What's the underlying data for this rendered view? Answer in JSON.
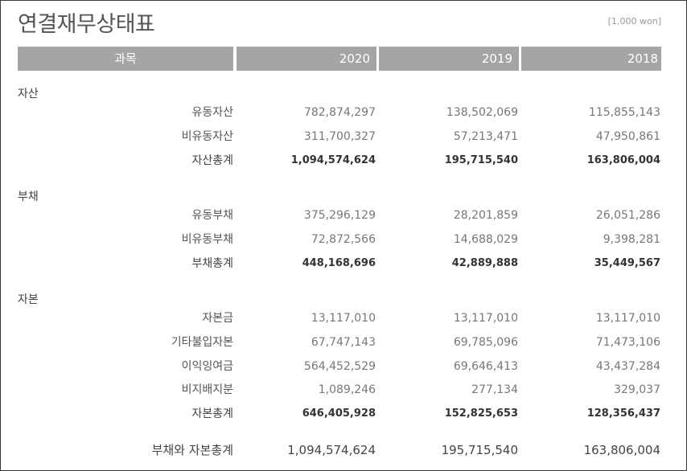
{
  "title": "연결재무상태표",
  "unit": "[1,000 won]",
  "header": {
    "label": "과목",
    "years": [
      "2020",
      "2019",
      "2018"
    ]
  },
  "sections": [
    {
      "name": "자산",
      "rows": [
        {
          "label": "유동자산",
          "values": [
            "782,874,297",
            "138,502,069",
            "115,855,143"
          ]
        },
        {
          "label": "비유동자산",
          "values": [
            "311,700,327",
            "57,213,471",
            "47,950,861"
          ]
        },
        {
          "label": "자산총계",
          "values": [
            "1,094,574,624",
            "195,715,540",
            "163,806,004"
          ],
          "total": true
        }
      ]
    },
    {
      "name": "부채",
      "rows": [
        {
          "label": "유동부채",
          "values": [
            "375,296,129",
            "28,201,859",
            "26,051,286"
          ]
        },
        {
          "label": "비유동부채",
          "values": [
            "72,872,566",
            "14,688,029",
            "9,398,281"
          ]
        },
        {
          "label": "부채총계",
          "values": [
            "448,168,696",
            "42,889,888",
            "35,449,567"
          ],
          "total": true
        }
      ]
    },
    {
      "name": "자본",
      "rows": [
        {
          "label": "자본금",
          "values": [
            "13,117,010",
            "13,117,010",
            "13,117,010"
          ]
        },
        {
          "label": "기타불입자본",
          "values": [
            "67,747,143",
            "69,785,096",
            "71,473,106"
          ]
        },
        {
          "label": "이익잉여금",
          "values": [
            "564,452,529",
            "69,646,413",
            "43,437,284"
          ]
        },
        {
          "label": "비지배지분",
          "values": [
            "1,089,246",
            "277,134",
            "329,037"
          ]
        },
        {
          "label": "자본총계",
          "values": [
            "646,405,928",
            "152,825,653",
            "128,356,437"
          ],
          "total": true
        }
      ]
    }
  ],
  "grand_total": {
    "label": "부채와 자본총계",
    "values": [
      "1,094,574,624",
      "195,715,540",
      "163,806,004"
    ]
  }
}
